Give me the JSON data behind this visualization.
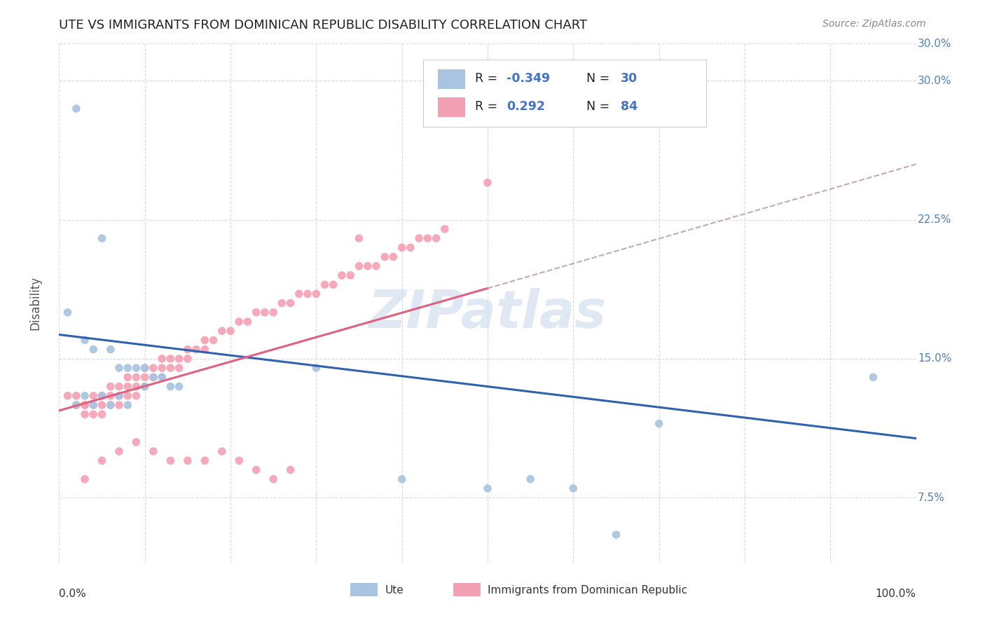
{
  "title": "UTE VS IMMIGRANTS FROM DOMINICAN REPUBLIC DISABILITY CORRELATION CHART",
  "source": "Source: ZipAtlas.com",
  "ylabel": "Disability",
  "yticks": [
    7.5,
    15.0,
    22.5,
    30.0
  ],
  "ytick_labels": [
    "7.5%",
    "15.0%",
    "22.5%",
    "30.0%"
  ],
  "xlim": [
    0,
    1
  ],
  "ylim": [
    0.04,
    0.32
  ],
  "ute_color": "#a8c4e0",
  "dr_color": "#f4a0b4",
  "ute_line_color": "#3060b0",
  "dr_line_color": "#e06080",
  "dr_dash_color": "#c8a8b0",
  "background_color": "#ffffff",
  "grid_color": "#d8d8e4",
  "ute_x": [
    0.02,
    0.05,
    0.01,
    0.03,
    0.04,
    0.06,
    0.07,
    0.08,
    0.09,
    0.1,
    0.11,
    0.12,
    0.13,
    0.14,
    0.03,
    0.05,
    0.07,
    0.02,
    0.04,
    0.06,
    0.08,
    0.1,
    0.3,
    0.4,
    0.5,
    0.55,
    0.6,
    0.65,
    0.7,
    0.95
  ],
  "ute_y": [
    0.285,
    0.215,
    0.175,
    0.16,
    0.155,
    0.155,
    0.145,
    0.145,
    0.145,
    0.145,
    0.14,
    0.14,
    0.135,
    0.135,
    0.13,
    0.13,
    0.13,
    0.125,
    0.125,
    0.125,
    0.125,
    0.135,
    0.145,
    0.085,
    0.08,
    0.085,
    0.08,
    0.055,
    0.115,
    0.14
  ],
  "dr_x": [
    0.01,
    0.02,
    0.02,
    0.03,
    0.03,
    0.03,
    0.04,
    0.04,
    0.04,
    0.05,
    0.05,
    0.05,
    0.06,
    0.06,
    0.06,
    0.07,
    0.07,
    0.07,
    0.08,
    0.08,
    0.08,
    0.09,
    0.09,
    0.09,
    0.1,
    0.1,
    0.1,
    0.11,
    0.11,
    0.12,
    0.12,
    0.12,
    0.13,
    0.13,
    0.14,
    0.14,
    0.15,
    0.15,
    0.16,
    0.17,
    0.17,
    0.18,
    0.19,
    0.2,
    0.21,
    0.22,
    0.23,
    0.24,
    0.25,
    0.26,
    0.27,
    0.28,
    0.29,
    0.3,
    0.31,
    0.32,
    0.33,
    0.34,
    0.35,
    0.36,
    0.37,
    0.38,
    0.39,
    0.4,
    0.41,
    0.42,
    0.43,
    0.44,
    0.45,
    0.03,
    0.05,
    0.07,
    0.09,
    0.11,
    0.13,
    0.15,
    0.17,
    0.19,
    0.21,
    0.23,
    0.25,
    0.27,
    0.35,
    0.5
  ],
  "dr_y": [
    0.13,
    0.13,
    0.125,
    0.12,
    0.125,
    0.125,
    0.12,
    0.125,
    0.13,
    0.12,
    0.125,
    0.13,
    0.125,
    0.13,
    0.135,
    0.125,
    0.13,
    0.135,
    0.13,
    0.135,
    0.14,
    0.13,
    0.135,
    0.14,
    0.135,
    0.14,
    0.145,
    0.14,
    0.145,
    0.14,
    0.145,
    0.15,
    0.145,
    0.15,
    0.145,
    0.15,
    0.15,
    0.155,
    0.155,
    0.155,
    0.16,
    0.16,
    0.165,
    0.165,
    0.17,
    0.17,
    0.175,
    0.175,
    0.175,
    0.18,
    0.18,
    0.185,
    0.185,
    0.185,
    0.19,
    0.19,
    0.195,
    0.195,
    0.2,
    0.2,
    0.2,
    0.205,
    0.205,
    0.21,
    0.21,
    0.215,
    0.215,
    0.215,
    0.22,
    0.085,
    0.095,
    0.1,
    0.105,
    0.1,
    0.095,
    0.095,
    0.095,
    0.1,
    0.095,
    0.09,
    0.085,
    0.09,
    0.215,
    0.245
  ],
  "legend_label_ute": "Ute",
  "legend_label_dr": "Immigrants from Dominican Republic",
  "legend_ute_R": "-0.349",
  "legend_ute_N": "30",
  "legend_dr_R": "0.292",
  "legend_dr_N": "84"
}
